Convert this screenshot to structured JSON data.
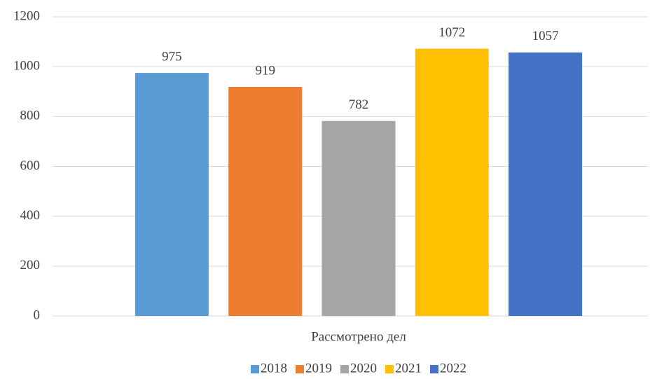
{
  "chart_data": {
    "type": "bar",
    "categories": [
      "Рассмотрено дел"
    ],
    "series": [
      {
        "name": "2018",
        "color": "#5b9bd5",
        "values": [
          975
        ]
      },
      {
        "name": "2019",
        "color": "#ed7d31",
        "values": [
          919
        ]
      },
      {
        "name": "2020",
        "color": "#a5a5a5",
        "values": [
          782
        ]
      },
      {
        "name": "2021",
        "color": "#ffc000",
        "values": [
          1072
        ]
      },
      {
        "name": "2022",
        "color": "#4472c4",
        "values": [
          1057
        ]
      }
    ],
    "ylim": [
      0,
      1200
    ],
    "yticks": [
      0,
      200,
      400,
      600,
      800,
      1000,
      1200
    ],
    "grid": true,
    "legend": "bottom"
  }
}
